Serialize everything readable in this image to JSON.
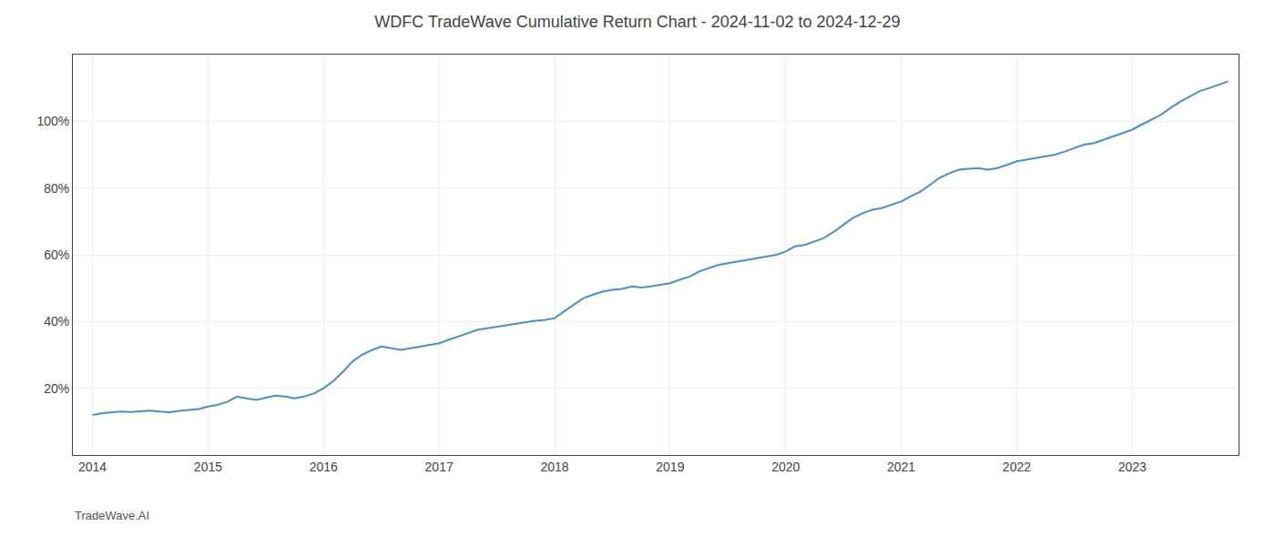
{
  "chart_data": {
    "type": "line",
    "title": "WDFC TradeWave Cumulative Return Chart - 2024-11-02 to 2024-12-29",
    "annotations": [
      "TradeWave.AI"
    ],
    "color": "#4a90c4",
    "x": [
      2014.0,
      2014.08,
      2014.17,
      2014.25,
      2014.33,
      2014.42,
      2014.5,
      2014.58,
      2014.67,
      2014.75,
      2014.83,
      2014.92,
      2015.0,
      2015.08,
      2015.17,
      2015.25,
      2015.33,
      2015.42,
      2015.5,
      2015.58,
      2015.67,
      2015.75,
      2015.83,
      2015.92,
      2016.0,
      2016.08,
      2016.17,
      2016.25,
      2016.33,
      2016.42,
      2016.5,
      2016.58,
      2016.67,
      2016.75,
      2016.83,
      2016.92,
      2017.0,
      2017.08,
      2017.17,
      2017.25,
      2017.33,
      2017.42,
      2017.5,
      2017.58,
      2017.67,
      2017.75,
      2017.83,
      2017.92,
      2018.0,
      2018.08,
      2018.17,
      2018.25,
      2018.33,
      2018.42,
      2018.5,
      2018.58,
      2018.67,
      2018.75,
      2018.83,
      2018.92,
      2019.0,
      2019.08,
      2019.17,
      2019.25,
      2019.33,
      2019.42,
      2019.5,
      2019.58,
      2019.67,
      2019.75,
      2019.83,
      2019.92,
      2020.0,
      2020.08,
      2020.17,
      2020.25,
      2020.33,
      2020.42,
      2020.5,
      2020.58,
      2020.67,
      2020.75,
      2020.83,
      2020.92,
      2021.0,
      2021.08,
      2021.17,
      2021.25,
      2021.33,
      2021.42,
      2021.5,
      2021.58,
      2021.67,
      2021.75,
      2021.83,
      2021.92,
      2022.0,
      2022.08,
      2022.17,
      2022.25,
      2022.33,
      2022.42,
      2022.5,
      2022.58,
      2022.67,
      2022.75,
      2022.83,
      2022.92,
      2023.0,
      2023.08,
      2023.17,
      2023.25,
      2023.33,
      2023.42,
      2023.5,
      2023.58,
      2023.67,
      2023.75,
      2023.83
    ],
    "values": [
      12.0,
      12.5,
      12.8,
      13.0,
      12.9,
      13.1,
      13.3,
      13.0,
      12.8,
      13.2,
      13.5,
      13.8,
      14.5,
      15.0,
      16.0,
      17.5,
      17.0,
      16.5,
      17.2,
      17.8,
      17.5,
      17.0,
      17.5,
      18.5,
      20.0,
      22.0,
      25.0,
      28.0,
      30.0,
      31.5,
      32.5,
      32.0,
      31.5,
      32.0,
      32.5,
      33.0,
      33.5,
      34.5,
      35.5,
      36.5,
      37.5,
      38.0,
      38.5,
      39.0,
      39.5,
      39.8,
      40.2,
      40.5,
      41.0,
      43.0,
      45.0,
      47.0,
      48.0,
      49.0,
      49.5,
      49.8,
      50.5,
      50.2,
      50.5,
      51.0,
      51.5,
      52.5,
      53.5,
      55.0,
      56.0,
      57.0,
      57.5,
      58.0,
      58.5,
      59.0,
      59.5,
      60.0,
      61.0,
      62.5,
      63.0,
      64.0,
      65.0,
      67.0,
      69.0,
      71.0,
      72.5,
      73.5,
      74.0,
      75.0,
      76.0,
      77.5,
      79.0,
      81.0,
      83.0,
      84.5,
      85.5,
      85.8,
      86.0,
      85.5,
      86.0,
      87.0,
      88.0,
      88.5,
      89.0,
      89.5,
      90.0,
      91.0,
      92.0,
      93.0,
      93.5,
      94.5,
      95.5,
      96.5,
      97.5,
      99.0,
      100.5,
      102.0,
      104.0,
      106.0,
      107.5,
      109.0,
      110.0,
      111.0,
      112.0
    ],
    "xlim": [
      2013.83,
      2023.92
    ],
    "ylim": [
      0,
      120
    ],
    "xticks": [
      2014,
      2015,
      2016,
      2017,
      2018,
      2019,
      2020,
      2021,
      2022,
      2023
    ],
    "yticks": [
      {
        "value": 20,
        "label": "20%"
      },
      {
        "value": 40,
        "label": "40%"
      },
      {
        "value": 60,
        "label": "60%"
      },
      {
        "value": 80,
        "label": "80%"
      },
      {
        "value": 100,
        "label": "100%"
      }
    ],
    "grid": true
  }
}
